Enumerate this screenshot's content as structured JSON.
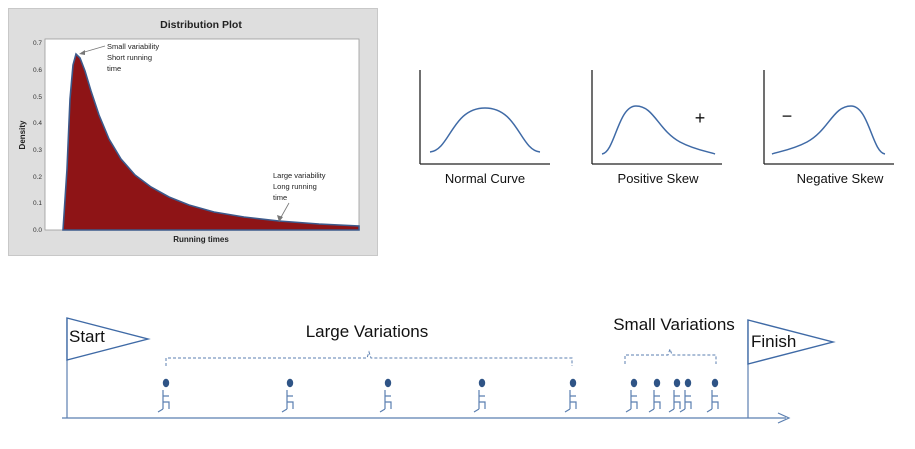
{
  "distribution_plot": {
    "title": "Distribution Plot",
    "ylabel": "Density",
    "xlabel": "Running times",
    "yticks": [
      "0.7",
      "0.6",
      "0.5",
      "0.4",
      "0.3",
      "0.2",
      "0.1",
      "0.0"
    ],
    "annotation_small": [
      "Small variability",
      "Short running",
      "time"
    ],
    "annotation_large": [
      "Large variability",
      "Long running",
      "time"
    ],
    "fill_color": "#8e1416",
    "line_color": "#3c5a8c"
  },
  "skew_curves": {
    "normal_label": "Normal Curve",
    "positive_label": "Positive Skew",
    "negative_label": "Negative Skew",
    "plus_sign": "+",
    "minus_sign": "−",
    "curve_color": "#3f6aa6"
  },
  "race": {
    "start_label": "Start",
    "finish_label": "Finish",
    "large_label": "Large Variations",
    "small_label": "Small Variations",
    "line_color": "#5b7fb0",
    "runner_color": "#2f5486"
  }
}
